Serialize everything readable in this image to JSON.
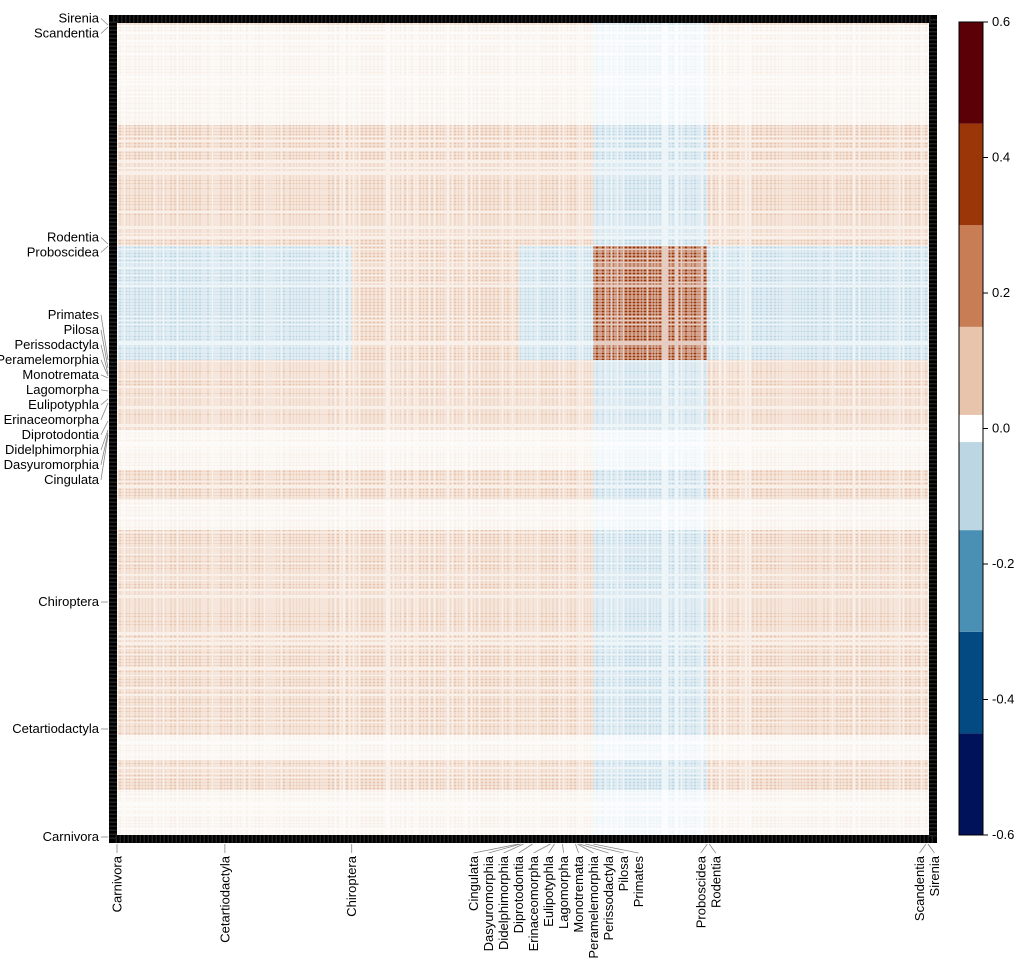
{
  "chart_data": {
    "type": "heatmap",
    "title": "",
    "xlabel": "",
    "ylabel": "",
    "n_items": 814,
    "ticks": [
      {
        "label": "Carnivora",
        "index": 0
      },
      {
        "label": "Cetartiodactyla",
        "index": 108
      },
      {
        "label": "Chiroptera",
        "index": 235
      },
      {
        "label": "Cingulata",
        "index": 402
      },
      {
        "label": "Dasyuromorphia",
        "index": 404
      },
      {
        "label": "Didelphimorphia",
        "index": 407
      },
      {
        "label": "Diprotodontia",
        "index": 416
      },
      {
        "label": "Erinaceomorpha",
        "index": 434
      },
      {
        "label": "Eulipotyphla",
        "index": 438
      },
      {
        "label": "Lagomorpha",
        "index": 446
      },
      {
        "label": "Monotremata",
        "index": 459
      },
      {
        "label": "Peramelemorphia",
        "index": 461
      },
      {
        "label": "Perissodactyla",
        "index": 463
      },
      {
        "label": "Pilosa",
        "index": 469
      },
      {
        "label": "Primates",
        "index": 477
      },
      {
        "label": "Proboscidea",
        "index": 591
      },
      {
        "label": "Rodentia",
        "index": 593
      },
      {
        "label": "Scandentia",
        "index": 810
      },
      {
        "label": "Sirenia",
        "index": 812
      }
    ],
    "block_starts": [
      "Carnivora",
      "Cetartiodactyla",
      "Chiroptera",
      "Cingulata",
      "Primates",
      "Proboscidea"
    ],
    "block_values_rows_bottom_to_top": [
      [
        0.05,
        0.08,
        0.05,
        0.08,
        -0.08,
        0.05
      ],
      [
        0.05,
        0.1,
        0.08,
        0.1,
        -0.1,
        0.08
      ],
      [
        0.04,
        0.08,
        0.05,
        0.05,
        -0.1,
        0.05
      ],
      [
        0.05,
        0.08,
        0.05,
        0.08,
        -0.1,
        0.06
      ],
      [
        -0.1,
        -0.1,
        0.1,
        -0.1,
        0.35,
        -0.1
      ],
      [
        0.05,
        0.1,
        0.05,
        0.08,
        -0.08,
        0.06
      ]
    ],
    "colorbar": {
      "range": [
        -0.6,
        0.6
      ],
      "tick_labels": [
        "0.6",
        "0.4",
        "0.2",
        "0.0",
        "-0.2",
        "-0.4",
        "-0.6"
      ],
      "tick_values": [
        0.6,
        0.4,
        0.2,
        0.0,
        -0.2,
        -0.4,
        -0.6
      ],
      "breaks": [
        -0.6,
        -0.45,
        -0.3,
        -0.15,
        -0.02,
        0.02,
        0.15,
        0.3,
        0.45,
        0.6
      ],
      "colors": [
        "#00125a",
        "#034a82",
        "#4a90b4",
        "#bcd6e4",
        "#ffffff",
        "#e8c4ad",
        "#c97d55",
        "#9a3608",
        "#5c0008"
      ]
    },
    "legend_placement": "right",
    "grid": false
  }
}
